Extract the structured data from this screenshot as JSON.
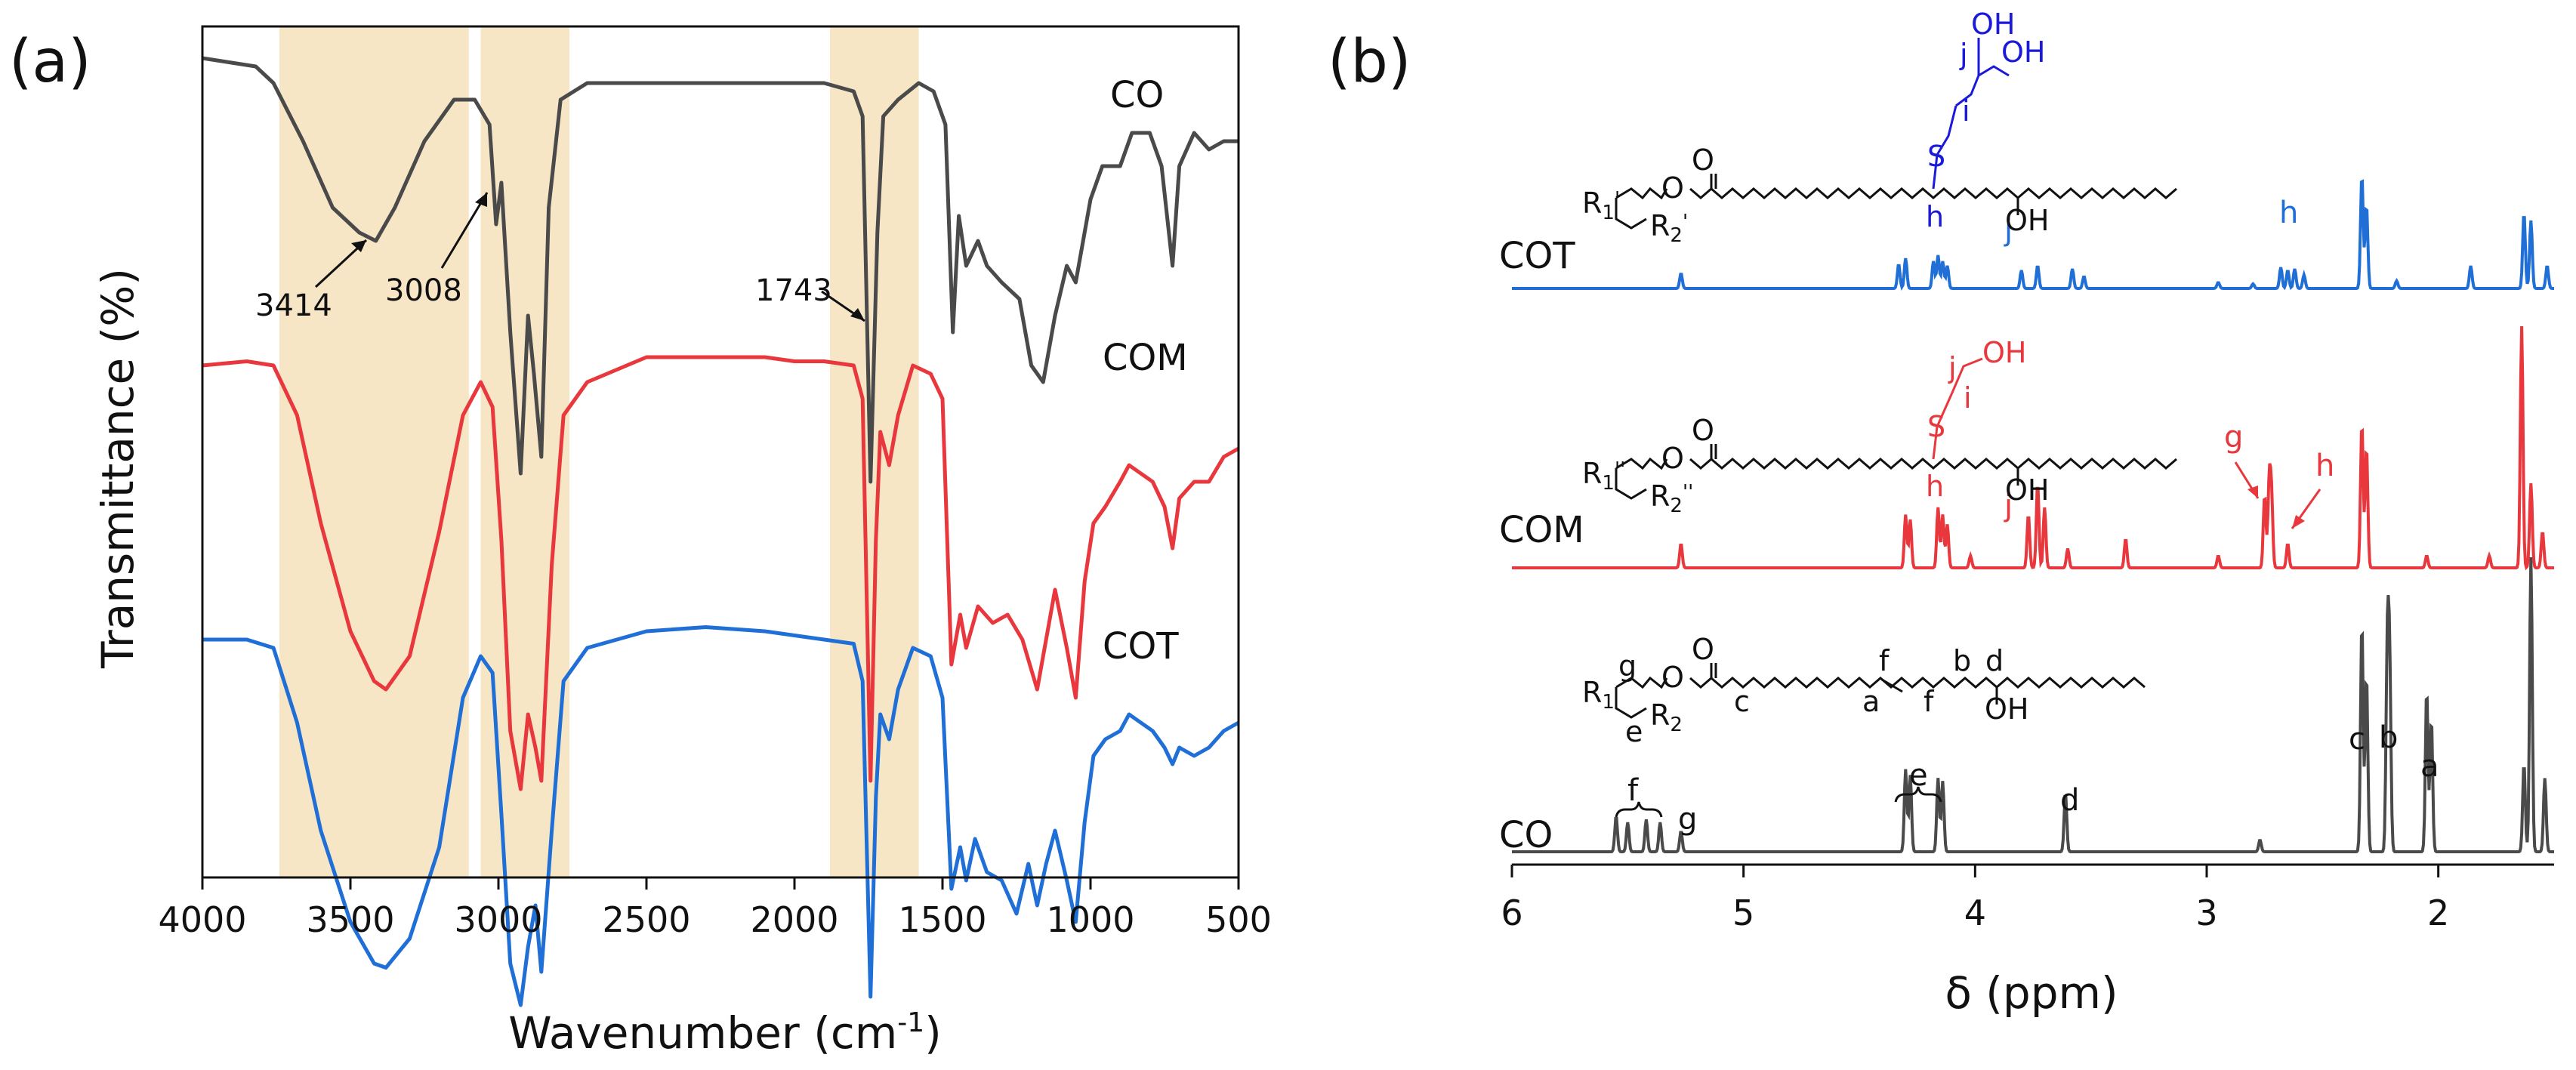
{
  "colors": {
    "CO": "#4a4a4a",
    "COM": "#e8383d",
    "COT": "#1f6fd6",
    "COT_annot": "#1a1ad8",
    "COM_annot": "#e8383d",
    "band": "#f7e6c6"
  },
  "chart_data": [
    {
      "panel": "(a)",
      "type": "line",
      "title": "",
      "xlabel": "Wavenumber (cm",
      "xlabel_sup": "-1",
      "xlabel_end": ")",
      "ylabel": "Transmittance (%)",
      "xlim": [
        4000,
        500
      ],
      "x_ticks": [
        "4000",
        "3500",
        "3000",
        "2500",
        "2000",
        "1500",
        "1000",
        "500"
      ],
      "shaded_bands": [
        [
          3740,
          3100
        ],
        [
          3060,
          2760
        ],
        [
          1880,
          1580
        ]
      ],
      "series": [
        {
          "name": "CO",
          "points": [
            [
              4000,
              0.93
            ],
            [
              3820,
              0.92
            ],
            [
              3760,
              0.9
            ],
            [
              3660,
              0.83
            ],
            [
              3560,
              0.75
            ],
            [
              3470,
              0.72
            ],
            [
              3414,
              0.71
            ],
            [
              3350,
              0.75
            ],
            [
              3250,
              0.83
            ],
            [
              3150,
              0.88
            ],
            [
              3080,
              0.88
            ],
            [
              3030,
              0.85
            ],
            [
              3008,
              0.73
            ],
            [
              2990,
              0.78
            ],
            [
              2960,
              0.6
            ],
            [
              2925,
              0.43
            ],
            [
              2900,
              0.62
            ],
            [
              2880,
              0.55
            ],
            [
              2855,
              0.45
            ],
            [
              2830,
              0.75
            ],
            [
              2790,
              0.88
            ],
            [
              2700,
              0.9
            ],
            [
              2500,
              0.9
            ],
            [
              2200,
              0.9
            ],
            [
              2000,
              0.9
            ],
            [
              1900,
              0.9
            ],
            [
              1800,
              0.89
            ],
            [
              1770,
              0.86
            ],
            [
              1743,
              0.42
            ],
            [
              1720,
              0.72
            ],
            [
              1700,
              0.86
            ],
            [
              1650,
              0.88
            ],
            [
              1580,
              0.9
            ],
            [
              1530,
              0.89
            ],
            [
              1490,
              0.85
            ],
            [
              1465,
              0.6
            ],
            [
              1445,
              0.74
            ],
            [
              1420,
              0.68
            ],
            [
              1380,
              0.71
            ],
            [
              1350,
              0.68
            ],
            [
              1300,
              0.66
            ],
            [
              1240,
              0.64
            ],
            [
              1200,
              0.56
            ],
            [
              1160,
              0.54
            ],
            [
              1120,
              0.62
            ],
            [
              1080,
              0.68
            ],
            [
              1050,
              0.66
            ],
            [
              1000,
              0.76
            ],
            [
              960,
              0.8
            ],
            [
              900,
              0.8
            ],
            [
              860,
              0.84
            ],
            [
              800,
              0.84
            ],
            [
              760,
              0.8
            ],
            [
              723,
              0.68
            ],
            [
              700,
              0.8
            ],
            [
              650,
              0.84
            ],
            [
              600,
              0.82
            ],
            [
              550,
              0.83
            ],
            [
              500,
              0.83
            ]
          ]
        },
        {
          "name": "COM",
          "points": [
            [
              4000,
              0.56
            ],
            [
              3850,
              0.565
            ],
            [
              3760,
              0.56
            ],
            [
              3680,
              0.5
            ],
            [
              3600,
              0.37
            ],
            [
              3500,
              0.24
            ],
            [
              3420,
              0.18
            ],
            [
              3380,
              0.17
            ],
            [
              3300,
              0.21
            ],
            [
              3200,
              0.36
            ],
            [
              3120,
              0.5
            ],
            [
              3060,
              0.54
            ],
            [
              3020,
              0.51
            ],
            [
              2990,
              0.35
            ],
            [
              2960,
              0.12
            ],
            [
              2925,
              0.05
            ],
            [
              2900,
              0.14
            ],
            [
              2875,
              0.1
            ],
            [
              2855,
              0.06
            ],
            [
              2820,
              0.32
            ],
            [
              2780,
              0.5
            ],
            [
              2700,
              0.54
            ],
            [
              2500,
              0.57
            ],
            [
              2300,
              0.57
            ],
            [
              2100,
              0.57
            ],
            [
              2000,
              0.565
            ],
            [
              1900,
              0.565
            ],
            [
              1800,
              0.56
            ],
            [
              1770,
              0.52
            ],
            [
              1743,
              0.06
            ],
            [
              1725,
              0.35
            ],
            [
              1710,
              0.48
            ],
            [
              1680,
              0.44
            ],
            [
              1650,
              0.5
            ],
            [
              1600,
              0.56
            ],
            [
              1540,
              0.55
            ],
            [
              1500,
              0.52
            ],
            [
              1470,
              0.2
            ],
            [
              1440,
              0.26
            ],
            [
              1420,
              0.22
            ],
            [
              1380,
              0.27
            ],
            [
              1330,
              0.25
            ],
            [
              1280,
              0.26
            ],
            [
              1230,
              0.23
            ],
            [
              1180,
              0.17
            ],
            [
              1150,
              0.23
            ],
            [
              1120,
              0.29
            ],
            [
              1080,
              0.22
            ],
            [
              1050,
              0.16
            ],
            [
              1020,
              0.3
            ],
            [
              990,
              0.37
            ],
            [
              950,
              0.39
            ],
            [
              900,
              0.42
            ],
            [
              870,
              0.44
            ],
            [
              830,
              0.43
            ],
            [
              790,
              0.42
            ],
            [
              750,
              0.39
            ],
            [
              723,
              0.34
            ],
            [
              700,
              0.4
            ],
            [
              650,
              0.42
            ],
            [
              600,
              0.42
            ],
            [
              550,
              0.45
            ],
            [
              500,
              0.46
            ]
          ]
        },
        {
          "name": "COT",
          "points": [
            [
              4000,
              0.23
            ],
            [
              3850,
              0.23
            ],
            [
              3760,
              0.22
            ],
            [
              3680,
              0.13
            ],
            [
              3600,
              0.0
            ],
            [
              3500,
              -0.11
            ],
            [
              3420,
              -0.16
            ],
            [
              3380,
              -0.165
            ],
            [
              3300,
              -0.13
            ],
            [
              3200,
              -0.02
            ],
            [
              3120,
              0.16
            ],
            [
              3060,
              0.21
            ],
            [
              3020,
              0.19
            ],
            [
              2990,
              0.02
            ],
            [
              2960,
              -0.16
            ],
            [
              2925,
              -0.21
            ],
            [
              2900,
              -0.14
            ],
            [
              2875,
              -0.09
            ],
            [
              2855,
              -0.17
            ],
            [
              2820,
              0.0
            ],
            [
              2780,
              0.18
            ],
            [
              2700,
              0.22
            ],
            [
              2500,
              0.24
            ],
            [
              2300,
              0.245
            ],
            [
              2100,
              0.24
            ],
            [
              2000,
              0.235
            ],
            [
              1900,
              0.23
            ],
            [
              1800,
              0.225
            ],
            [
              1770,
              0.18
            ],
            [
              1743,
              -0.2
            ],
            [
              1725,
              0.04
            ],
            [
              1710,
              0.14
            ],
            [
              1680,
              0.11
            ],
            [
              1650,
              0.17
            ],
            [
              1600,
              0.22
            ],
            [
              1540,
              0.21
            ],
            [
              1500,
              0.16
            ],
            [
              1470,
              -0.07
            ],
            [
              1440,
              -0.02
            ],
            [
              1420,
              -0.06
            ],
            [
              1390,
              -0.01
            ],
            [
              1350,
              -0.05
            ],
            [
              1300,
              -0.06
            ],
            [
              1250,
              -0.1
            ],
            [
              1210,
              -0.04
            ],
            [
              1180,
              -0.09
            ],
            [
              1150,
              -0.04
            ],
            [
              1120,
              0.0
            ],
            [
              1080,
              -0.06
            ],
            [
              1050,
              -0.11
            ],
            [
              1020,
              0.01
            ],
            [
              990,
              0.09
            ],
            [
              950,
              0.11
            ],
            [
              900,
              0.12
            ],
            [
              870,
              0.14
            ],
            [
              830,
              0.13
            ],
            [
              790,
              0.12
            ],
            [
              750,
              0.1
            ],
            [
              723,
              0.08
            ],
            [
              700,
              0.1
            ],
            [
              650,
              0.09
            ],
            [
              600,
              0.1
            ],
            [
              550,
              0.12
            ],
            [
              500,
              0.13
            ]
          ]
        }
      ],
      "series_labels": [
        "CO",
        "COM",
        "COT"
      ],
      "annotations": [
        "3414",
        "3008",
        "1743"
      ]
    },
    {
      "panel": "(b)",
      "type": "line",
      "title": "",
      "xlabel": "δ (ppm)",
      "xlim": [
        6,
        1.5
      ],
      "x_ticks": [
        "6",
        "5",
        "4",
        "3",
        "2"
      ],
      "series": [
        {
          "name": "CO",
          "peaks": [
            [
              5.55,
              0.12
            ],
            [
              5.5,
              0.1
            ],
            [
              5.42,
              0.11
            ],
            [
              5.36,
              0.1
            ],
            [
              5.27,
              0.07
            ],
            [
              4.3,
              0.28
            ],
            [
              4.28,
              0.26
            ],
            [
              4.16,
              0.25
            ],
            [
              4.14,
              0.24
            ],
            [
              3.61,
              0.2
            ],
            [
              2.77,
              0.04
            ],
            [
              2.33,
              0.78
            ],
            [
              2.31,
              0.6
            ],
            [
              2.22,
              0.68
            ],
            [
              2.21,
              0.6
            ],
            [
              2.05,
              0.55
            ],
            [
              2.03,
              0.45
            ],
            [
              1.63,
              0.3
            ],
            [
              1.6,
              1.0
            ],
            [
              1.54,
              0.25
            ]
          ]
        },
        {
          "name": "COM",
          "peaks": [
            [
              5.27,
              0.1
            ],
            [
              4.3,
              0.22
            ],
            [
              4.28,
              0.2
            ],
            [
              4.16,
              0.25
            ],
            [
              4.14,
              0.22
            ],
            [
              4.12,
              0.18
            ],
            [
              4.02,
              0.05
            ],
            [
              3.77,
              0.22
            ],
            [
              3.73,
              0.35
            ],
            [
              3.7,
              0.25
            ],
            [
              3.6,
              0.08
            ],
            [
              3.35,
              0.12
            ],
            [
              2.95,
              0.05
            ],
            [
              2.75,
              0.3
            ],
            [
              2.73,
              0.35
            ],
            [
              2.72,
              0.28
            ],
            [
              2.65,
              0.1
            ],
            [
              2.33,
              0.6
            ],
            [
              2.31,
              0.5
            ],
            [
              2.05,
              0.05
            ],
            [
              1.78,
              0.05
            ],
            [
              1.64,
              1.0
            ],
            [
              1.6,
              0.35
            ],
            [
              1.55,
              0.15
            ]
          ]
        },
        {
          "name": "COT",
          "peaks": [
            [
              5.27,
              0.1
            ],
            [
              4.33,
              0.16
            ],
            [
              4.3,
              0.2
            ],
            [
              4.18,
              0.18
            ],
            [
              4.16,
              0.22
            ],
            [
              4.14,
              0.18
            ],
            [
              4.12,
              0.15
            ],
            [
              3.8,
              0.12
            ],
            [
              3.73,
              0.15
            ],
            [
              3.58,
              0.13
            ],
            [
              3.53,
              0.08
            ],
            [
              2.95,
              0.04
            ],
            [
              2.8,
              0.03
            ],
            [
              2.68,
              0.14
            ],
            [
              2.65,
              0.12
            ],
            [
              2.62,
              0.13
            ],
            [
              2.58,
              0.09
            ],
            [
              2.33,
              0.75
            ],
            [
              2.31,
              0.55
            ],
            [
              2.18,
              0.05
            ],
            [
              1.86,
              0.15
            ],
            [
              1.63,
              0.5
            ],
            [
              1.6,
              0.45
            ],
            [
              1.53,
              0.15
            ]
          ]
        }
      ],
      "series_labels": [
        "COT",
        "COM",
        "CO"
      ],
      "peak_labels": [
        "f",
        "g",
        "e",
        "d",
        "c",
        "b",
        "a",
        "j",
        "h",
        "g",
        "h",
        "j",
        "h"
      ],
      "structures": {
        "COT_letters": [
          "j",
          "i",
          "h"
        ],
        "COM_letters": [
          "j",
          "i",
          "h"
        ],
        "CO_letters": [
          "g",
          "c",
          "e",
          "a",
          "f",
          "f",
          "b",
          "d"
        ],
        "groups": [
          "OH",
          "OH",
          "OH",
          "S",
          "O",
          "OH",
          "S",
          "O",
          "OH",
          "O",
          "OH"
        ],
        "R_labels": [
          "R",
          "1",
          "'",
          "R",
          "2",
          "'",
          "R",
          "1",
          "''",
          "R",
          "2",
          "''",
          "R",
          "1",
          "R",
          "2"
        ]
      }
    }
  ]
}
